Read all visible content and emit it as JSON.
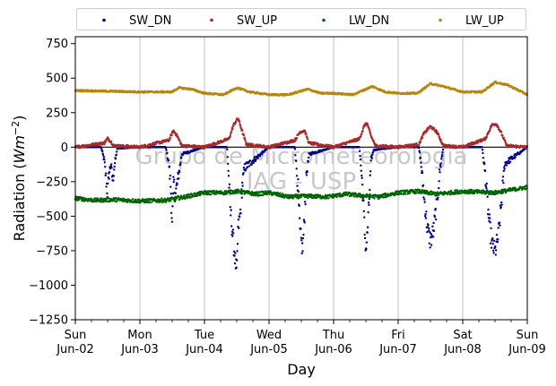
{
  "chart_data": {
    "type": "scatter",
    "xlabel": "Day",
    "ylabel_prefix": "Radiation (",
    "ylabel_unit_base": "Wm",
    "ylabel_unit_exp": "−2",
    "ylabel_suffix": ")",
    "ylim": [
      -1250,
      800
    ],
    "yticks": [
      750,
      500,
      250,
      0,
      -250,
      -500,
      -750,
      -1000,
      -1250
    ],
    "ytick_labels": [
      "750",
      "500",
      "250",
      "0",
      "−250",
      "−500",
      "−750",
      "−1000",
      "−1250"
    ],
    "xlim_days": [
      0,
      7
    ],
    "xticks": [
      {
        "day": 0,
        "weekday": "Sun",
        "date": "Jun-02"
      },
      {
        "day": 1,
        "weekday": "Mon",
        "date": "Jun-03"
      },
      {
        "day": 2,
        "weekday": "Tue",
        "date": "Jun-04"
      },
      {
        "day": 3,
        "weekday": "Wed",
        "date": "Jun-05"
      },
      {
        "day": 4,
        "weekday": "Thu",
        "date": "Jun-06"
      },
      {
        "day": 5,
        "weekday": "Fri",
        "date": "Jun-07"
      },
      {
        "day": 6,
        "weekday": "Sat",
        "date": "Jun-08"
      },
      {
        "day": 7,
        "weekday": "Sun",
        "date": "Jun-09"
      }
    ],
    "grid": "vertical",
    "legend_position": "top",
    "watermark_line1": "Grupo de Micrometeorologia",
    "watermark_line2": "IAG - USP",
    "series": [
      {
        "name": "SW_DN",
        "color": "#00008b",
        "points": [
          [
            0.0,
            0
          ],
          [
            0.4,
            0
          ],
          [
            0.45,
            -100
          ],
          [
            0.48,
            -250
          ],
          [
            0.5,
            -330
          ],
          [
            0.52,
            -200
          ],
          [
            0.55,
            -120
          ],
          [
            0.58,
            -250
          ],
          [
            0.6,
            -150
          ],
          [
            0.65,
            -10
          ],
          [
            1.0,
            0
          ],
          [
            1.4,
            0
          ],
          [
            1.45,
            -120
          ],
          [
            1.48,
            -300
          ],
          [
            1.5,
            -570
          ],
          [
            1.52,
            -250
          ],
          [
            1.55,
            -350
          ],
          [
            1.6,
            -200
          ],
          [
            1.65,
            -50
          ],
          [
            2.0,
            0
          ],
          [
            2.35,
            0
          ],
          [
            2.38,
            -250
          ],
          [
            2.4,
            -450
          ],
          [
            2.45,
            -700
          ],
          [
            2.5,
            -920
          ],
          [
            2.52,
            -600
          ],
          [
            2.55,
            -500
          ],
          [
            2.58,
            -300
          ],
          [
            2.62,
            -150
          ],
          [
            3.0,
            0
          ],
          [
            3.4,
            0
          ],
          [
            3.45,
            -300
          ],
          [
            3.48,
            -620
          ],
          [
            3.52,
            -750
          ],
          [
            3.55,
            -500
          ],
          [
            3.58,
            -200
          ],
          [
            3.62,
            -50
          ],
          [
            4.0,
            0
          ],
          [
            4.4,
            0
          ],
          [
            4.45,
            -300
          ],
          [
            4.48,
            -600
          ],
          [
            4.5,
            -740
          ],
          [
            4.52,
            -650
          ],
          [
            4.55,
            -400
          ],
          [
            4.58,
            -100
          ],
          [
            4.62,
            -20
          ],
          [
            5.0,
            0
          ],
          [
            5.32,
            0
          ],
          [
            5.35,
            -100
          ],
          [
            5.4,
            -350
          ],
          [
            5.45,
            -580
          ],
          [
            5.5,
            -680
          ],
          [
            5.55,
            -600
          ],
          [
            5.6,
            -400
          ],
          [
            5.65,
            -150
          ],
          [
            5.7,
            0
          ],
          [
            6.0,
            0
          ],
          [
            6.3,
            0
          ],
          [
            6.35,
            -200
          ],
          [
            6.4,
            -500
          ],
          [
            6.45,
            -700
          ],
          [
            6.5,
            -760
          ],
          [
            6.55,
            -650
          ],
          [
            6.6,
            -400
          ],
          [
            6.65,
            -120
          ],
          [
            7.0,
            0
          ]
        ]
      },
      {
        "name": "SW_UP",
        "color": "#a52a2a",
        "points": [
          [
            0.0,
            0
          ],
          [
            0.45,
            30
          ],
          [
            0.5,
            65
          ],
          [
            0.55,
            40
          ],
          [
            0.6,
            10
          ],
          [
            1.0,
            0
          ],
          [
            1.45,
            50
          ],
          [
            1.52,
            120
          ],
          [
            1.58,
            80
          ],
          [
            1.65,
            10
          ],
          [
            2.0,
            0
          ],
          [
            2.38,
            60
          ],
          [
            2.45,
            160
          ],
          [
            2.52,
            210
          ],
          [
            2.58,
            120
          ],
          [
            2.65,
            20
          ],
          [
            3.0,
            0
          ],
          [
            3.4,
            50
          ],
          [
            3.48,
            110
          ],
          [
            3.55,
            120
          ],
          [
            3.62,
            30
          ],
          [
            4.0,
            0
          ],
          [
            4.4,
            60
          ],
          [
            4.48,
            160
          ],
          [
            4.52,
            170
          ],
          [
            4.58,
            80
          ],
          [
            4.65,
            10
          ],
          [
            5.0,
            0
          ],
          [
            5.32,
            20
          ],
          [
            5.4,
            100
          ],
          [
            5.5,
            150
          ],
          [
            5.6,
            110
          ],
          [
            5.7,
            10
          ],
          [
            6.0,
            0
          ],
          [
            6.35,
            60
          ],
          [
            6.45,
            160
          ],
          [
            6.52,
            170
          ],
          [
            6.6,
            100
          ],
          [
            6.68,
            10
          ],
          [
            7.0,
            0
          ]
        ]
      },
      {
        "name": "LW_DN",
        "color": "#006400",
        "points": [
          [
            0.0,
            -370
          ],
          [
            0.3,
            -385
          ],
          [
            0.6,
            -380
          ],
          [
            1.0,
            -390
          ],
          [
            1.4,
            -385
          ],
          [
            1.7,
            -360
          ],
          [
            2.0,
            -330
          ],
          [
            2.3,
            -330
          ],
          [
            2.5,
            -320
          ],
          [
            2.8,
            -340
          ],
          [
            3.0,
            -330
          ],
          [
            3.3,
            -360
          ],
          [
            3.6,
            -355
          ],
          [
            3.9,
            -360
          ],
          [
            4.2,
            -340
          ],
          [
            4.4,
            -350
          ],
          [
            4.7,
            -360
          ],
          [
            5.0,
            -330
          ],
          [
            5.3,
            -320
          ],
          [
            5.6,
            -340
          ],
          [
            6.0,
            -320
          ],
          [
            6.5,
            -330
          ],
          [
            7.0,
            -290
          ]
        ]
      },
      {
        "name": "LW_UP",
        "color": "#b8860b",
        "points": [
          [
            0.0,
            410
          ],
          [
            0.5,
            405
          ],
          [
            1.0,
            400
          ],
          [
            1.5,
            400
          ],
          [
            1.6,
            430
          ],
          [
            1.8,
            420
          ],
          [
            2.0,
            390
          ],
          [
            2.3,
            380
          ],
          [
            2.5,
            430
          ],
          [
            2.7,
            400
          ],
          [
            3.0,
            380
          ],
          [
            3.3,
            380
          ],
          [
            3.6,
            420
          ],
          [
            3.8,
            390
          ],
          [
            4.0,
            390
          ],
          [
            4.3,
            380
          ],
          [
            4.6,
            440
          ],
          [
            4.8,
            400
          ],
          [
            5.0,
            390
          ],
          [
            5.3,
            390
          ],
          [
            5.5,
            460
          ],
          [
            5.7,
            440
          ],
          [
            6.0,
            400
          ],
          [
            6.3,
            400
          ],
          [
            6.5,
            470
          ],
          [
            6.7,
            450
          ],
          [
            7.0,
            380
          ]
        ]
      }
    ]
  }
}
